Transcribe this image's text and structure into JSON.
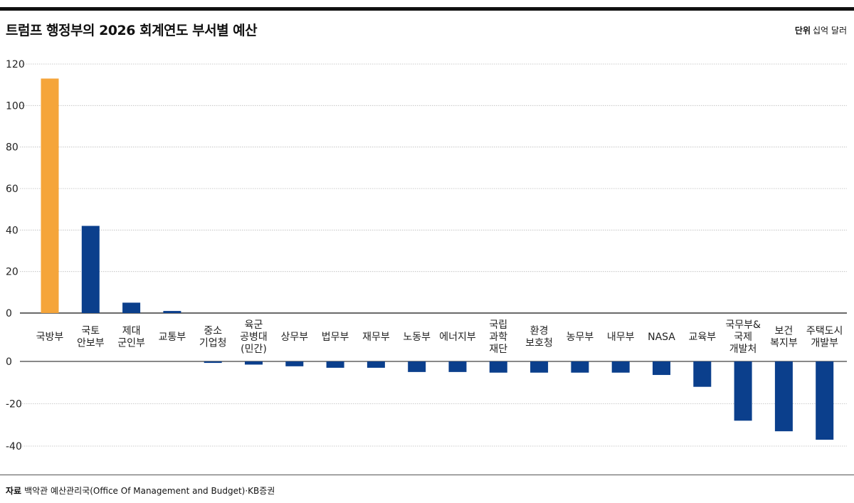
{
  "header": {
    "title": "트럼프 행정부의 2026 회계연도 부서별 예산",
    "unit_label": "단위",
    "unit_value": "십억 달러"
  },
  "footer": {
    "source_label": "자료",
    "source_text": "백악관 예산관리국(Office Of Management and Budget)·KB증권"
  },
  "colors": {
    "highlight": "#F5A53A",
    "bar": "#0B3F8C",
    "grid": "#BBBBBB",
    "axis": "#111111"
  },
  "chart_data": {
    "type": "bar",
    "title": "트럼프 행정부의 2026 회계연도 부서별 예산",
    "xlabel": "",
    "ylabel": "",
    "unit": "십억 달러",
    "panels": [
      {
        "ylim": [
          0,
          120
        ],
        "yticks": [
          "0",
          "20",
          "40",
          "60",
          "80",
          "100",
          "120"
        ]
      },
      {
        "ylim": [
          -40,
          0
        ],
        "yticks": [
          "0",
          "-20",
          "-40"
        ]
      }
    ],
    "grid": true,
    "highlight_index": 0,
    "categories": [
      [
        "국방부"
      ],
      [
        "국토",
        "안보부"
      ],
      [
        "제대",
        "군인부"
      ],
      [
        "교통부"
      ],
      [
        "중소",
        "기업청"
      ],
      [
        "육군",
        "공병대",
        "(민간)"
      ],
      [
        "상무부"
      ],
      [
        "법무부"
      ],
      [
        "재무부"
      ],
      [
        "노동부"
      ],
      [
        "에너지부"
      ],
      [
        "국립",
        "과학",
        "재단"
      ],
      [
        "환경",
        "보호청"
      ],
      [
        "농무부"
      ],
      [
        "내무부"
      ],
      [
        "NASA"
      ],
      [
        "교육부"
      ],
      [
        "국무부&",
        "국제",
        "개발처"
      ],
      [
        "보건",
        "복지부"
      ],
      [
        "주택도시",
        "개발부"
      ]
    ],
    "values": [
      113,
      42,
      5,
      1,
      -0.7,
      -1.5,
      -2.3,
      -3,
      -3,
      -5,
      -5,
      -5.3,
      -5.3,
      -5.3,
      -5.3,
      -6.4,
      -12,
      -28,
      -33,
      -37
    ]
  }
}
